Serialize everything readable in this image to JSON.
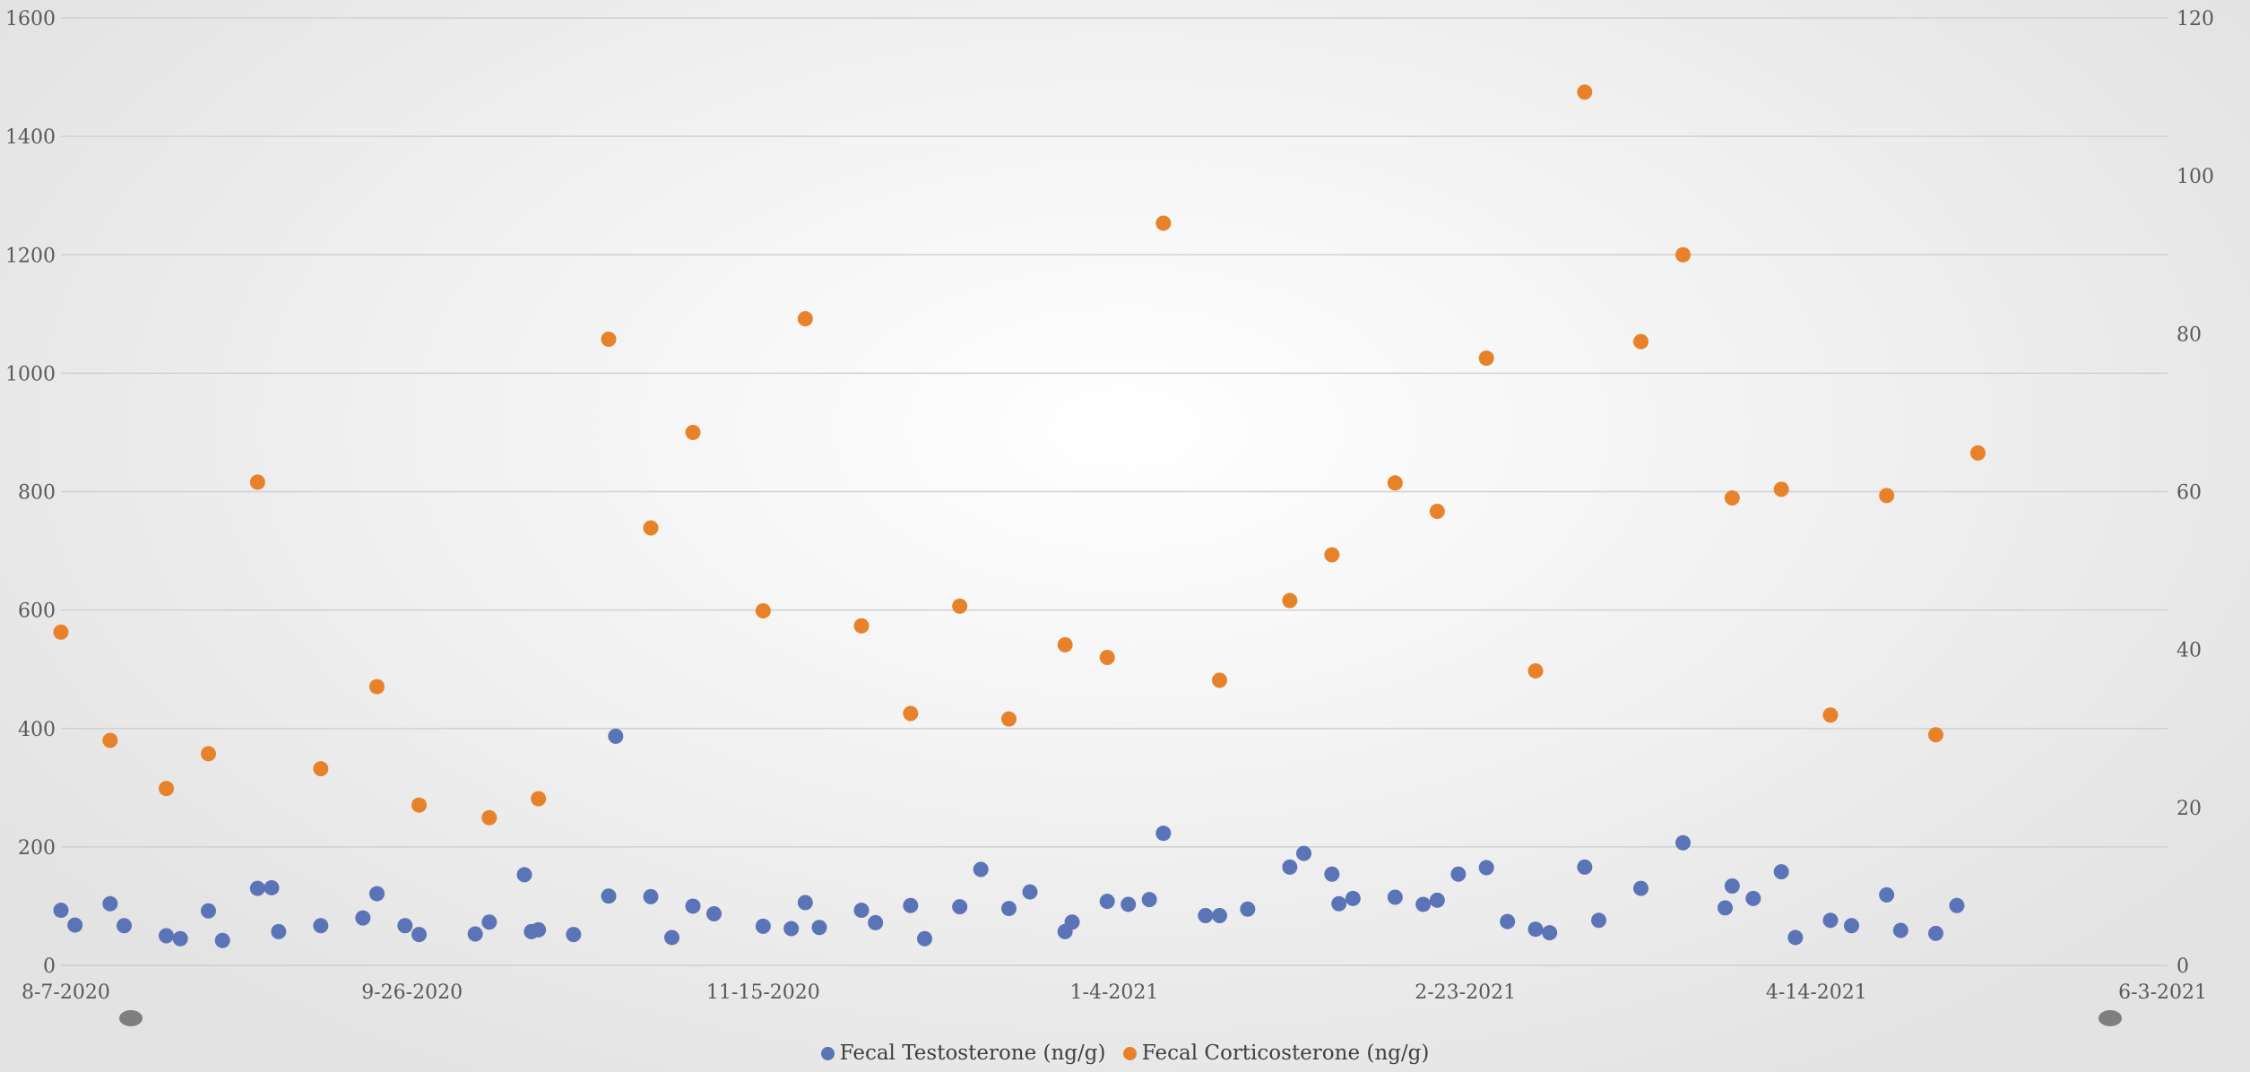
{
  "chart_data": {
    "type": "scatter",
    "title": "",
    "xlabel": "",
    "ylabel": "",
    "x_axis": {
      "type": "date",
      "min": "2020-08-07",
      "max": "2021-06-03",
      "ticks": [
        "2020-08-07",
        "2020-09-26",
        "2020-11-15",
        "2021-01-04",
        "2021-02-23",
        "2021-04-14",
        "2021-06-03"
      ],
      "tick_labels": [
        "8-7-2020",
        "9-26-2020",
        "11-15-2020",
        "1-4-2021",
        "2-23-2021",
        "4-14-2021",
        "6-3-2021"
      ]
    },
    "y_left": {
      "min": 0,
      "max": 1600,
      "ticks": [
        0,
        200,
        400,
        600,
        800,
        1000,
        1200,
        1400,
        1600
      ],
      "tick_labels": [
        "0",
        "200",
        "400",
        "600",
        "800",
        "1000",
        "1200",
        "1400",
        "1600"
      ]
    },
    "y_right": {
      "min": 0,
      "max": 120,
      "ticks": [
        0,
        20,
        40,
        60,
        80,
        100,
        120
      ],
      "tick_labels": [
        "0",
        "20",
        "40",
        "60",
        "80",
        "100",
        "120"
      ]
    },
    "grid": true,
    "legend_position": "bottom",
    "series": [
      {
        "name": "Fecal Testosterone (ng/g)",
        "axis": "left",
        "color": "#5b74b8",
        "points": [
          [
            "2020-08-07",
            93
          ],
          [
            "2020-08-09",
            68
          ],
          [
            "2020-08-14",
            104
          ],
          [
            "2020-08-16",
            67
          ],
          [
            "2020-08-22",
            50
          ],
          [
            "2020-08-24",
            45
          ],
          [
            "2020-08-28",
            92
          ],
          [
            "2020-08-30",
            42
          ],
          [
            "2020-09-04",
            130
          ],
          [
            "2020-09-06",
            131
          ],
          [
            "2020-09-07",
            57
          ],
          [
            "2020-09-13",
            67
          ],
          [
            "2020-09-19",
            80
          ],
          [
            "2020-09-21",
            121
          ],
          [
            "2020-09-25",
            67
          ],
          [
            "2020-09-27",
            52
          ],
          [
            "2020-10-05",
            53
          ],
          [
            "2020-10-07",
            73
          ],
          [
            "2020-10-12",
            153
          ],
          [
            "2020-10-13",
            57
          ],
          [
            "2020-10-14",
            60
          ],
          [
            "2020-10-19",
            52
          ],
          [
            "2020-10-24",
            117
          ],
          [
            "2020-10-25",
            387
          ],
          [
            "2020-10-30",
            116
          ],
          [
            "2020-11-02",
            47
          ],
          [
            "2020-11-05",
            100
          ],
          [
            "2020-11-08",
            87
          ],
          [
            "2020-11-15",
            66
          ],
          [
            "2020-11-19",
            62
          ],
          [
            "2020-11-21",
            106
          ],
          [
            "2020-11-23",
            64
          ],
          [
            "2020-11-29",
            93
          ],
          [
            "2020-12-01",
            72
          ],
          [
            "2020-12-06",
            101
          ],
          [
            "2020-12-08",
            45
          ],
          [
            "2020-12-13",
            99
          ],
          [
            "2020-12-16",
            162
          ],
          [
            "2020-12-20",
            96
          ],
          [
            "2020-12-23",
            124
          ],
          [
            "2020-12-28",
            57
          ],
          [
            "2020-12-29",
            73
          ],
          [
            "2021-01-03",
            108
          ],
          [
            "2021-01-06",
            103
          ],
          [
            "2021-01-09",
            111
          ],
          [
            "2021-01-11",
            223
          ],
          [
            "2021-01-17",
            84
          ],
          [
            "2021-01-19",
            84
          ],
          [
            "2021-01-23",
            95
          ],
          [
            "2021-01-29",
            166
          ],
          [
            "2021-01-31",
            189
          ],
          [
            "2021-02-04",
            154
          ],
          [
            "2021-02-05",
            104
          ],
          [
            "2021-02-07",
            113
          ],
          [
            "2021-02-13",
            115
          ],
          [
            "2021-02-17",
            103
          ],
          [
            "2021-02-19",
            110
          ],
          [
            "2021-02-22",
            154
          ],
          [
            "2021-02-26",
            165
          ],
          [
            "2021-03-01",
            74
          ],
          [
            "2021-03-05",
            61
          ],
          [
            "2021-03-07",
            55
          ],
          [
            "2021-03-12",
            166
          ],
          [
            "2021-03-14",
            76
          ],
          [
            "2021-03-20",
            130
          ],
          [
            "2021-03-26",
            207
          ],
          [
            "2021-04-01",
            97
          ],
          [
            "2021-04-02",
            134
          ],
          [
            "2021-04-05",
            113
          ],
          [
            "2021-04-09",
            158
          ],
          [
            "2021-04-11",
            47
          ],
          [
            "2021-04-16",
            76
          ],
          [
            "2021-04-19",
            67
          ],
          [
            "2021-04-24",
            119
          ],
          [
            "2021-04-26",
            59
          ],
          [
            "2021-05-01",
            54
          ],
          [
            "2021-05-04",
            101
          ]
        ]
      },
      {
        "name": "Fecal Corticosterone (ng/g)",
        "axis": "right",
        "color": "#e8822a",
        "points": [
          [
            "2020-08-07",
            42.2
          ],
          [
            "2020-08-14",
            28.5
          ],
          [
            "2020-08-22",
            22.4
          ],
          [
            "2020-08-28",
            26.8
          ],
          [
            "2020-09-04",
            61.2
          ],
          [
            "2020-09-13",
            24.9
          ],
          [
            "2020-09-21",
            35.3
          ],
          [
            "2020-09-27",
            20.3
          ],
          [
            "2020-10-07",
            18.7
          ],
          [
            "2020-10-14",
            21.1
          ],
          [
            "2020-10-24",
            79.3
          ],
          [
            "2020-10-30",
            55.4
          ],
          [
            "2020-11-05",
            67.5
          ],
          [
            "2020-11-15",
            44.9
          ],
          [
            "2020-11-21",
            81.9
          ],
          [
            "2020-11-29",
            43.0
          ],
          [
            "2020-12-06",
            31.9
          ],
          [
            "2020-12-13",
            45.5
          ],
          [
            "2020-12-20",
            31.2
          ],
          [
            "2020-12-28",
            40.6
          ],
          [
            "2021-01-03",
            39.0
          ],
          [
            "2021-01-11",
            94.0
          ],
          [
            "2021-01-19",
            36.1
          ],
          [
            "2021-01-29",
            46.2
          ],
          [
            "2021-02-04",
            52.0
          ],
          [
            "2021-02-13",
            61.1
          ],
          [
            "2021-02-19",
            57.5
          ],
          [
            "2021-02-26",
            76.9
          ],
          [
            "2021-03-05",
            37.3
          ],
          [
            "2021-03-12",
            110.6
          ],
          [
            "2021-03-20",
            79.0
          ],
          [
            "2021-03-26",
            90.0
          ],
          [
            "2021-04-02",
            59.2
          ],
          [
            "2021-04-09",
            60.3
          ],
          [
            "2021-04-16",
            31.7
          ],
          [
            "2021-04-24",
            59.5
          ],
          [
            "2021-05-01",
            29.2
          ],
          [
            "2021-05-07",
            64.9
          ]
        ]
      }
    ]
  },
  "legend": {
    "items": [
      {
        "label": "Fecal Testosterone (ng/g)",
        "color": "#5b74b8"
      },
      {
        "label": "Fecal Corticosterone (ng/g)",
        "color": "#e8822a"
      }
    ]
  }
}
